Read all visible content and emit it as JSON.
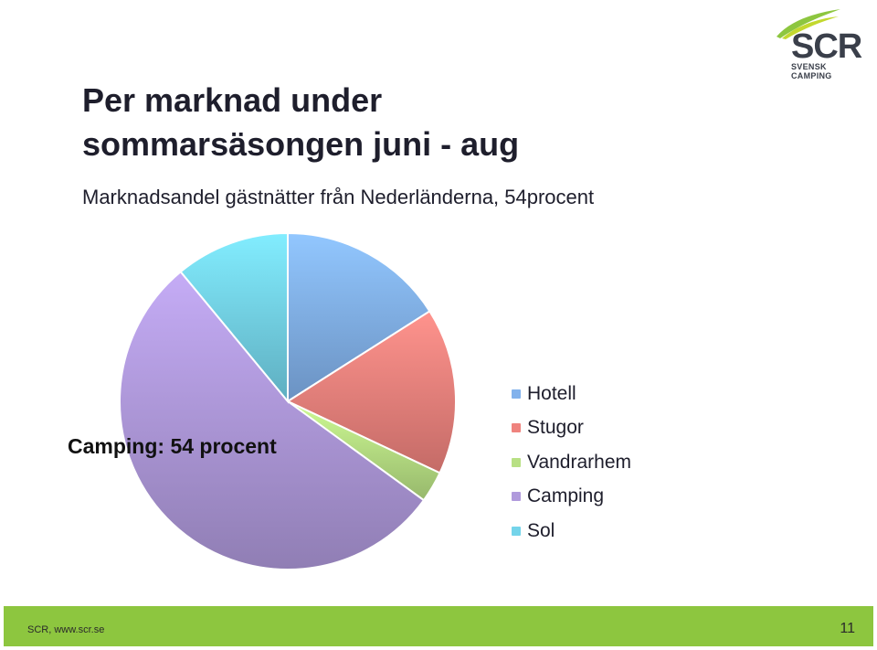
{
  "logo": {
    "text": "SCR",
    "sub": "SVENSK CAMPING"
  },
  "header": {
    "title_line1": "Per marknad under",
    "title_line2": "sommarsäsongen juni - aug",
    "subtitle": "Marknadsandel gästnätter från Nederländerna, 54procent"
  },
  "chart_data": {
    "type": "pie",
    "categories": [
      "Hotell",
      "Stugor",
      "Vandrarhem",
      "Camping",
      "Sol"
    ],
    "values": [
      16,
      16,
      3,
      54,
      11
    ],
    "colors": [
      "#82b2ec",
      "#ef837e",
      "#b8e084",
      "#b09adc",
      "#74d4ea"
    ],
    "annotation": "Camping: 54 procent",
    "legend_position": "right"
  },
  "footer": {
    "source": "SCR, www.scr.se",
    "page": "11"
  }
}
